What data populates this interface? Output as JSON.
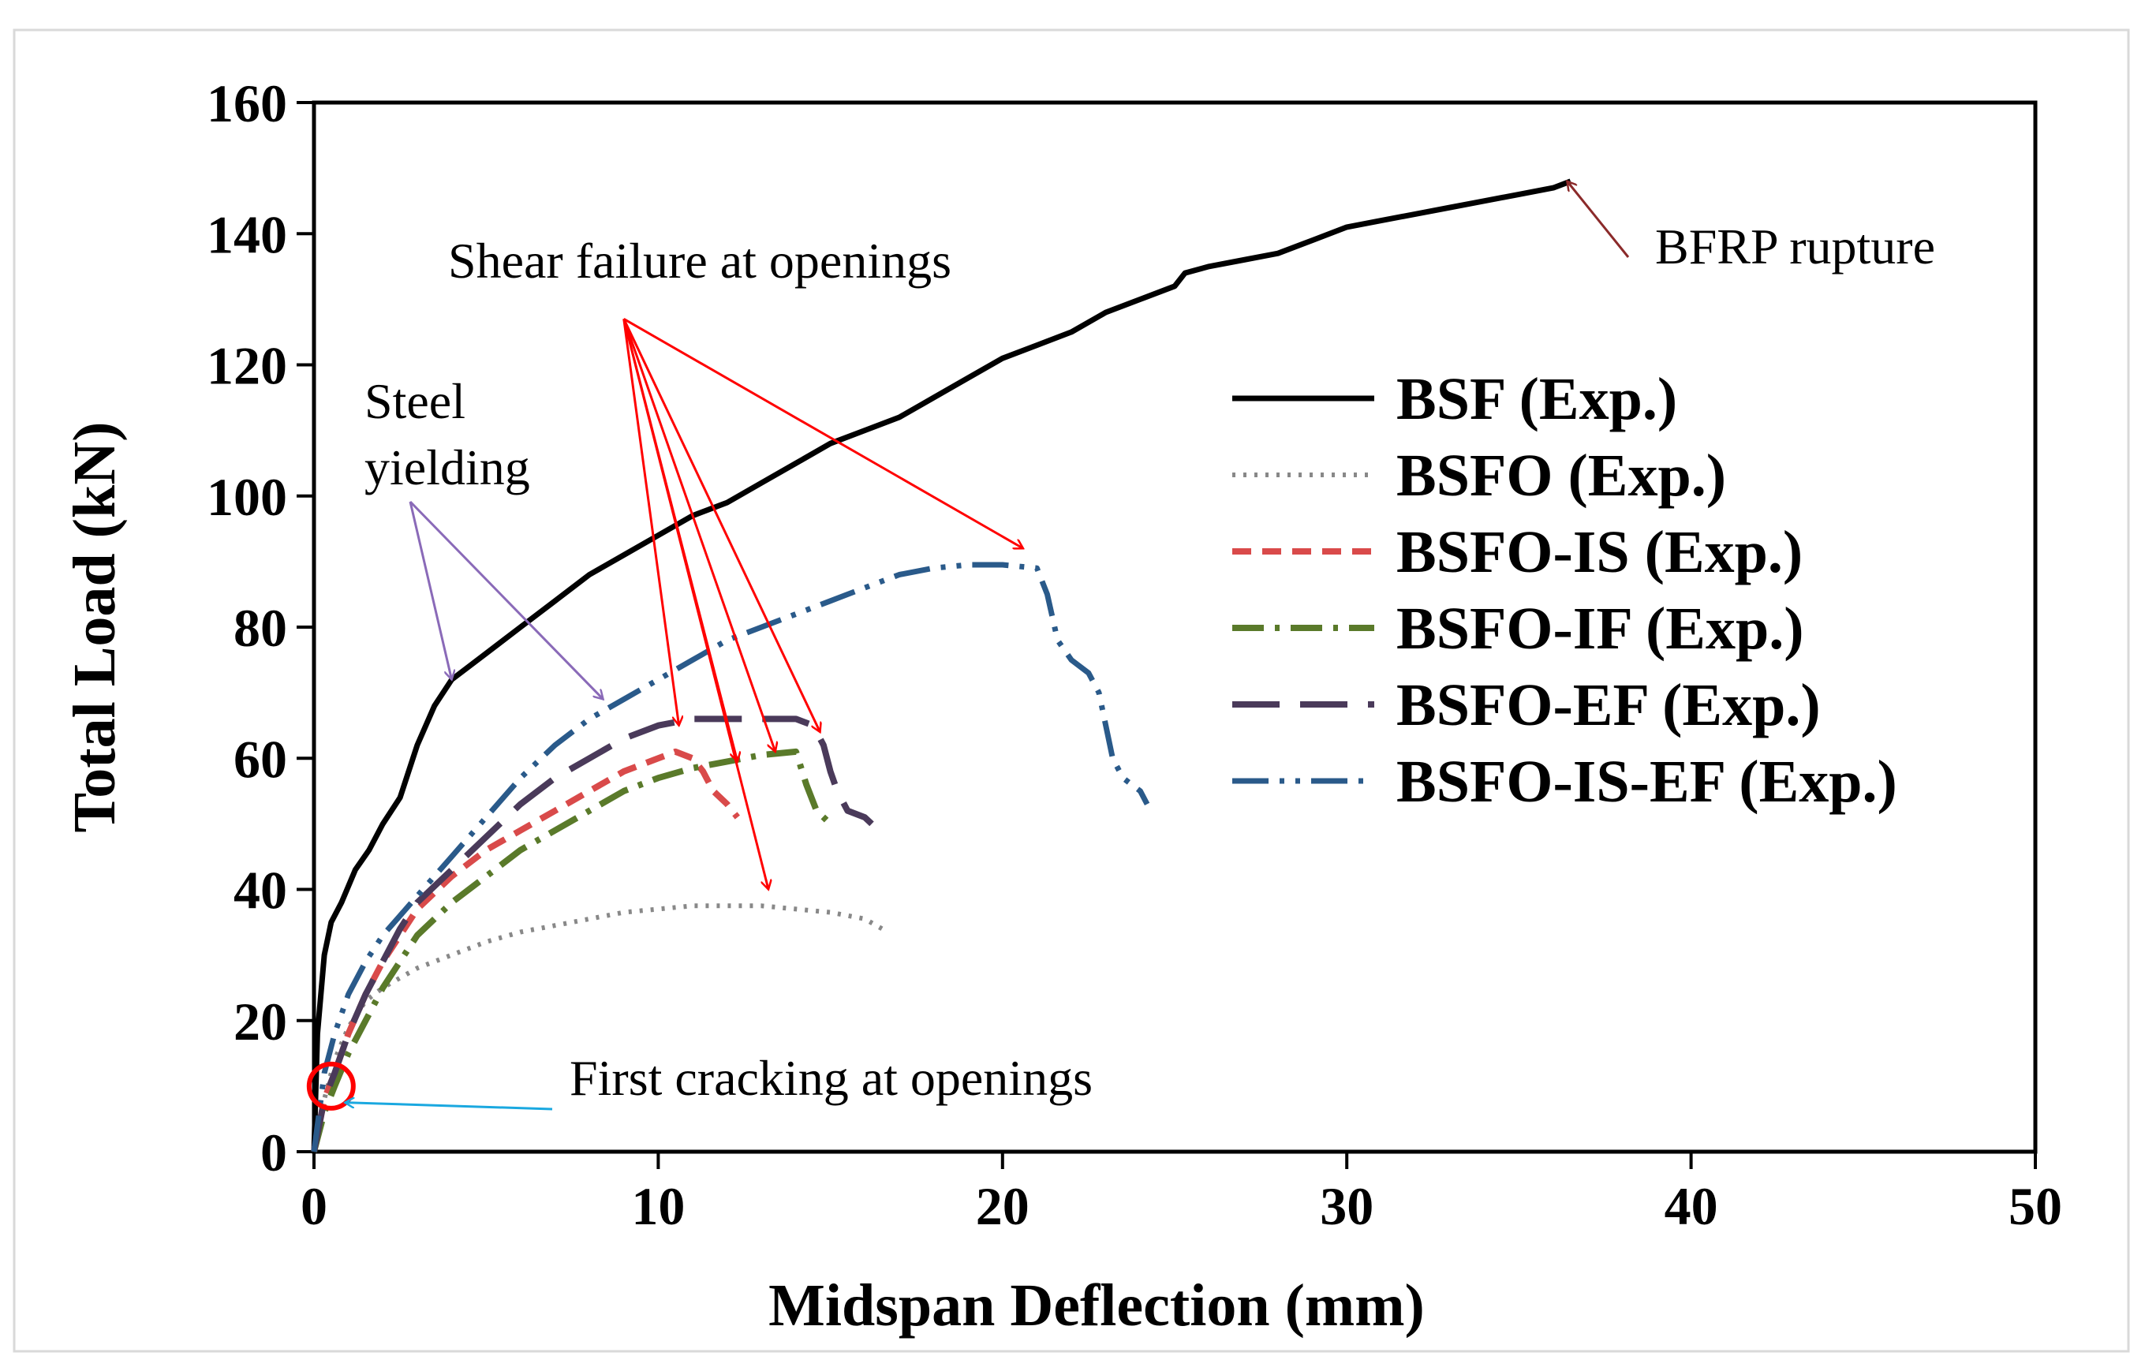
{
  "chart_data": {
    "type": "line",
    "title": "",
    "xlabel": "Midspan Deflection (mm)",
    "ylabel": "Total Load (kN)",
    "xlim": [
      0,
      50
    ],
    "ylim": [
      0,
      160
    ],
    "xticks": [
      "0",
      "10",
      "20",
      "30",
      "40",
      "50"
    ],
    "yticks": [
      "0",
      "20",
      "40",
      "60",
      "80",
      "100",
      "120",
      "140",
      "160"
    ],
    "grid": false,
    "legend_position": "right",
    "series": [
      {
        "name": "BSF (Exp.)",
        "color": "#000000",
        "dash": "solid",
        "x": [
          0,
          0.1,
          0.3,
          0.5,
          0.8,
          1.2,
          1.6,
          2.0,
          2.5,
          3.0,
          3.5,
          4.0,
          5.0,
          6.0,
          7.0,
          8.0,
          9.0,
          10.0,
          11.0,
          12.0,
          13.0,
          14.0,
          15.0,
          16.0,
          17.0,
          18.0,
          19.0,
          20.0,
          21.0,
          22.0,
          23.0,
          24.0,
          25.0,
          25.3,
          26.0,
          27.0,
          28.0,
          29.0,
          30.0,
          31.0,
          32.0,
          33.0,
          34.0,
          35.0,
          36.0,
          36.5
        ],
        "y": [
          0,
          18,
          30,
          35,
          38,
          43,
          46,
          50,
          54,
          62,
          68,
          72,
          76,
          80,
          84,
          88,
          91,
          94,
          97,
          99,
          102,
          105,
          108,
          110,
          112,
          115,
          118,
          121,
          123,
          125,
          128,
          130,
          132,
          134,
          135,
          136,
          137,
          139,
          141,
          142,
          143,
          144,
          145,
          146,
          147,
          148
        ]
      },
      {
        "name": "BSFO (Exp.)",
        "color": "#888888",
        "dash": "dotted",
        "x": [
          0,
          0.3,
          0.6,
          1.0,
          1.5,
          2.0,
          2.5,
          3.0,
          4.0,
          5.0,
          6.0,
          7.0,
          8.0,
          9.0,
          10.0,
          11.0,
          12.0,
          13.0,
          14.0,
          15.0,
          16.0,
          16.5
        ],
        "y": [
          0,
          8,
          14,
          19,
          23,
          25,
          26.5,
          28,
          30,
          32,
          33.5,
          34.5,
          35.5,
          36.5,
          37,
          37.5,
          37.5,
          37.5,
          37,
          36.5,
          35.5,
          34
        ]
      },
      {
        "name": "BSFO-IS (Exp.)",
        "color": "#d94a4a",
        "dash": "dashed",
        "x": [
          0,
          0.3,
          0.6,
          1.0,
          1.5,
          2.0,
          2.5,
          3.0,
          4.0,
          5.0,
          6.0,
          7.0,
          8.0,
          9.0,
          10.0,
          10.5,
          11.0,
          11.3,
          11.6,
          12.0,
          12.3
        ],
        "y": [
          0,
          8,
          12,
          18,
          24,
          29,
          33,
          37,
          42,
          46,
          49,
          52,
          55,
          58,
          60,
          61,
          60,
          58,
          55,
          53,
          51
        ]
      },
      {
        "name": "BSFO-IF (Exp.)",
        "color": "#5a7a2a",
        "dash": "dashdot",
        "x": [
          0,
          0.3,
          0.6,
          1.0,
          1.5,
          2.0,
          2.5,
          3.0,
          4.0,
          5.0,
          6.0,
          7.0,
          8.0,
          9.0,
          10.0,
          11.0,
          12.0,
          13.0,
          14.0,
          14.3,
          14.6,
          15.0
        ],
        "y": [
          0,
          6,
          10,
          15,
          20,
          25,
          29,
          33,
          38,
          42,
          46,
          49,
          52,
          55,
          57,
          58.5,
          59.5,
          60.5,
          61,
          56,
          52,
          50
        ]
      },
      {
        "name": "BSFO-EF (Exp.)",
        "color": "#4a3a5a",
        "dash": "longdash",
        "x": [
          0,
          0.3,
          0.6,
          1.0,
          1.5,
          2.0,
          2.5,
          3.0,
          4.0,
          5.0,
          6.0,
          7.0,
          8.0,
          9.0,
          10.0,
          11.0,
          12.0,
          13.0,
          14.0,
          14.5,
          14.8,
          15.0,
          15.2,
          15.5,
          16.0,
          16.2
        ],
        "y": [
          0,
          8,
          12,
          18,
          24,
          29,
          34,
          38,
          43,
          48,
          53,
          57,
          60,
          63,
          65,
          66,
          66,
          66,
          66,
          65,
          62,
          58,
          55,
          52,
          51,
          50
        ]
      },
      {
        "name": "BSFO-IS-EF (Exp.)",
        "color": "#2a5a8a",
        "dash": "dashdotdot",
        "x": [
          0,
          0.3,
          0.6,
          1.0,
          1.5,
          2.0,
          2.5,
          3.0,
          4.0,
          5.0,
          6.0,
          7.0,
          8.0,
          9.0,
          10.0,
          11.0,
          12.0,
          13.0,
          14.0,
          15.0,
          16.0,
          17.0,
          18.0,
          19.0,
          20.0,
          21.0,
          21.3,
          21.6,
          22.0,
          22.5,
          22.8,
          23.0,
          23.2,
          23.5,
          24.0,
          24.2
        ],
        "y": [
          0,
          12,
          18,
          24,
          29,
          33,
          36,
          39,
          45,
          51,
          57,
          62,
          66,
          69,
          72,
          75,
          78,
          80,
          82,
          84,
          86,
          88,
          89,
          89.5,
          89.5,
          89,
          85,
          78,
          75,
          73,
          70,
          65,
          60,
          57,
          55,
          53
        ]
      }
    ],
    "annotations": [
      {
        "name": "shear-failure",
        "text": "Shear failure at openings"
      },
      {
        "name": "bfrp-rupture",
        "text": "BFRP rupture"
      },
      {
        "name": "steel-yielding",
        "text": [
          "Steel",
          "yielding"
        ]
      },
      {
        "name": "first-cracking",
        "text": "First cracking at openings"
      }
    ]
  }
}
